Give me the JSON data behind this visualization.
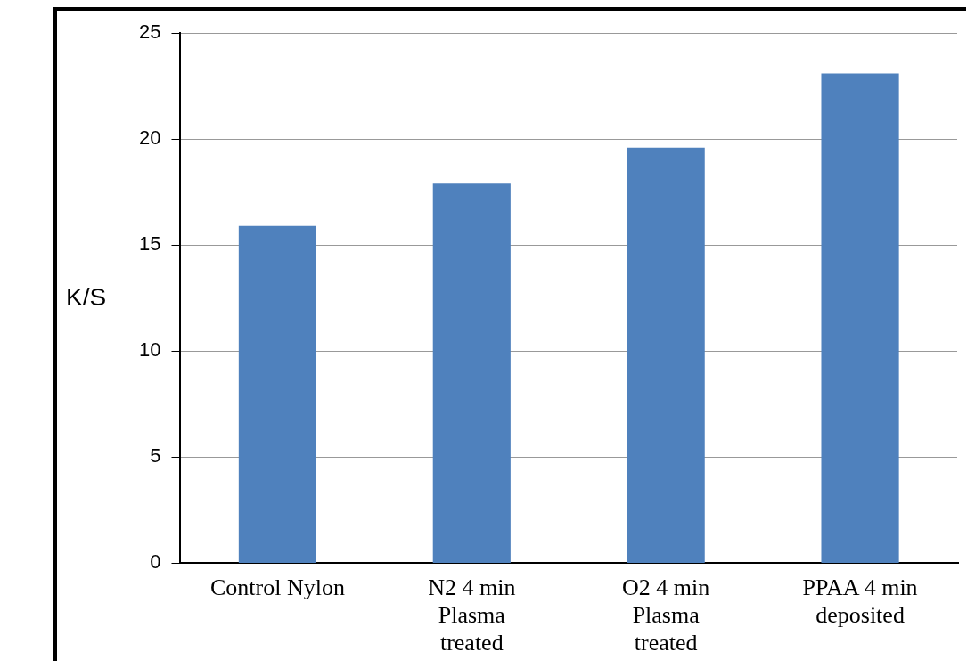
{
  "chart_data": {
    "type": "bar",
    "ylabel": "K/S",
    "categories": [
      "Control Nylon",
      "N2 4 min Plasma treated",
      "O2 4 min Plasma treated",
      "PPAA 4 min deposited"
    ],
    "values": [
      15.9,
      17.9,
      19.6,
      23.1
    ],
    "color": "#4f81bd",
    "ylim": [
      0,
      25
    ],
    "yticks": [
      0,
      5,
      10,
      15,
      20,
      25
    ],
    "grid": "y"
  }
}
